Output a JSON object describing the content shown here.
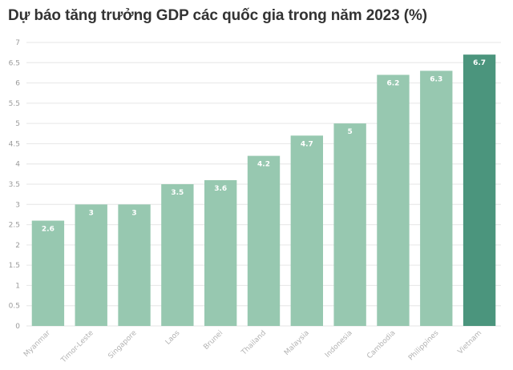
{
  "chart_data": {
    "type": "bar",
    "title": "Dự báo tăng trưởng GDP các quốc gia trong năm 2023 (%)",
    "xlabel": "",
    "ylabel": "",
    "categories": [
      "Myanmar",
      "Timor-Leste",
      "Singapore",
      "Laos",
      "Brunei",
      "Thailand",
      "Malaysia",
      "Indonesia",
      "Cambodia",
      "Philippines",
      "Vietnam"
    ],
    "values": [
      2.6,
      3,
      3,
      3.5,
      3.6,
      4.2,
      4.7,
      5,
      6.2,
      6.3,
      6.7
    ],
    "ylim": [
      0,
      7
    ],
    "yticks": [
      "0",
      "0.5",
      "1",
      "1.5",
      "2",
      "2.5",
      "3",
      "3.5",
      "4",
      "4.5",
      "5",
      "5.5",
      "6",
      "6.5",
      "7"
    ],
    "grid": true,
    "colors": {
      "bar": "#97c8b0",
      "highlight": "#4b957d",
      "highlight_category": "Vietnam"
    }
  }
}
